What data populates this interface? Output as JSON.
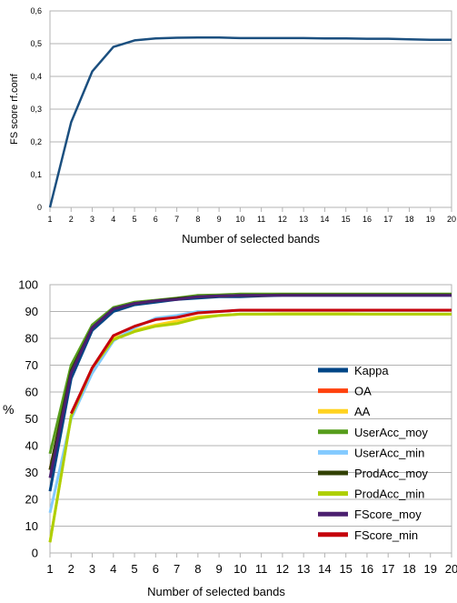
{
  "chart_data": [
    {
      "type": "line",
      "title": "",
      "xlabel": "Number of selected bands",
      "ylabel": "FS score rf.conf",
      "x": [
        1,
        2,
        3,
        4,
        5,
        6,
        7,
        8,
        9,
        10,
        11,
        12,
        13,
        14,
        15,
        16,
        17,
        18,
        19,
        20
      ],
      "xlim": [
        1,
        20
      ],
      "ylim": [
        0,
        0.6
      ],
      "yticks": [
        "0",
        "0,1",
        "0,2",
        "0,3",
        "0,4",
        "0,5",
        "0,6"
      ],
      "xticks": [
        "1",
        "2",
        "3",
        "4",
        "5",
        "6",
        "7",
        "8",
        "9",
        "10",
        "11",
        "12",
        "13",
        "14",
        "15",
        "16",
        "17",
        "18",
        "19",
        "20"
      ],
      "grid": true,
      "series": [
        {
          "color": "#1b4f7f",
          "values": [
            0.0,
            0.26,
            0.415,
            0.49,
            0.51,
            0.516,
            0.518,
            0.519,
            0.519,
            0.517,
            0.517,
            0.517,
            0.517,
            0.516,
            0.516,
            0.515,
            0.515,
            0.513,
            0.512,
            0.512
          ]
        }
      ]
    },
    {
      "type": "line",
      "title": "",
      "xlabel": "Number of selected bands",
      "ylabel": "%",
      "x": [
        1,
        2,
        3,
        4,
        5,
        6,
        7,
        8,
        9,
        10,
        11,
        12,
        13,
        14,
        15,
        16,
        17,
        18,
        19,
        20
      ],
      "xlim": [
        1,
        20
      ],
      "ylim": [
        0,
        100
      ],
      "yticks": [
        "0",
        "10",
        "20",
        "30",
        "40",
        "50",
        "60",
        "70",
        "80",
        "90",
        "100"
      ],
      "xticks": [
        "1",
        "2",
        "3",
        "4",
        "5",
        "6",
        "7",
        "8",
        "9",
        "10",
        "11",
        "12",
        "13",
        "14",
        "15",
        "16",
        "17",
        "18",
        "19",
        "20"
      ],
      "grid": true,
      "legend": "right",
      "series": [
        {
          "name": "Kappa",
          "color": "#004586",
          "values": [
            23,
            65,
            83,
            90,
            92.5,
            93.5,
            94.5,
            95,
            95.5,
            95.5,
            95.8,
            96,
            96,
            96,
            96,
            96,
            96,
            96,
            96,
            96
          ]
        },
        {
          "name": "OA",
          "color": "#ff420e",
          "values": [
            31,
            68,
            84,
            91,
            93,
            94,
            94.8,
            95.5,
            95.8,
            96,
            96,
            96.2,
            96.2,
            96.2,
            96.2,
            96.2,
            96.2,
            96.2,
            96.2,
            96.2
          ]
        },
        {
          "name": "AA",
          "color": "#ffd320",
          "values": [
            4,
            51,
            69,
            80,
            83,
            85,
            86.5,
            88,
            88.5,
            89,
            89,
            89.2,
            89.2,
            89.2,
            89.2,
            89,
            89,
            89,
            89,
            89
          ]
        },
        {
          "name": "UserAcc_moy",
          "color": "#579d1c",
          "values": [
            37,
            70,
            85,
            91.5,
            93.5,
            94.2,
            95,
            96,
            96.2,
            96.5,
            96.5,
            96.5,
            96.5,
            96.5,
            96.5,
            96.5,
            96.5,
            96.5,
            96.5,
            96.5
          ]
        },
        {
          "name": "UserAcc_min",
          "color": "#83caff",
          "values": [
            15,
            50,
            67,
            79,
            84,
            87.5,
            88.5,
            90,
            90,
            90.5,
            90.5,
            90.5,
            90.5,
            90.5,
            90.5,
            90.5,
            90.5,
            90.5,
            90.5,
            90.5
          ]
        },
        {
          "name": "ProdAcc_moy",
          "color": "#314004",
          "values": [
            31,
            68,
            84,
            91,
            93,
            94,
            94.8,
            95.5,
            95.8,
            96,
            96,
            96.2,
            96.2,
            96.2,
            96.2,
            96.2,
            96.2,
            96.2,
            96.2,
            96.2
          ]
        },
        {
          "name": "ProdAcc_min",
          "color": "#aecf00",
          "values": [
            4,
            51,
            69,
            79.5,
            82.5,
            84.5,
            85.5,
            87.5,
            88.5,
            89,
            89,
            89,
            89,
            89,
            89,
            89,
            89,
            89,
            89,
            89
          ]
        },
        {
          "name": "FScore_moy",
          "color": "#4b1f6f",
          "values": [
            28,
            67,
            84,
            91,
            93,
            94,
            94.5,
            95.5,
            95.8,
            96,
            96,
            96,
            96,
            96,
            96,
            96,
            96,
            96,
            96,
            96
          ]
        },
        {
          "name": "FScore_min",
          "color": "#c5000b",
          "values": [
            null,
            52,
            69,
            81,
            84.5,
            87,
            87.8,
            89.5,
            90,
            90.5,
            90.5,
            90.5,
            90.5,
            90.5,
            90.5,
            90.5,
            90.5,
            90.5,
            90.5,
            90.5
          ]
        }
      ]
    }
  ]
}
